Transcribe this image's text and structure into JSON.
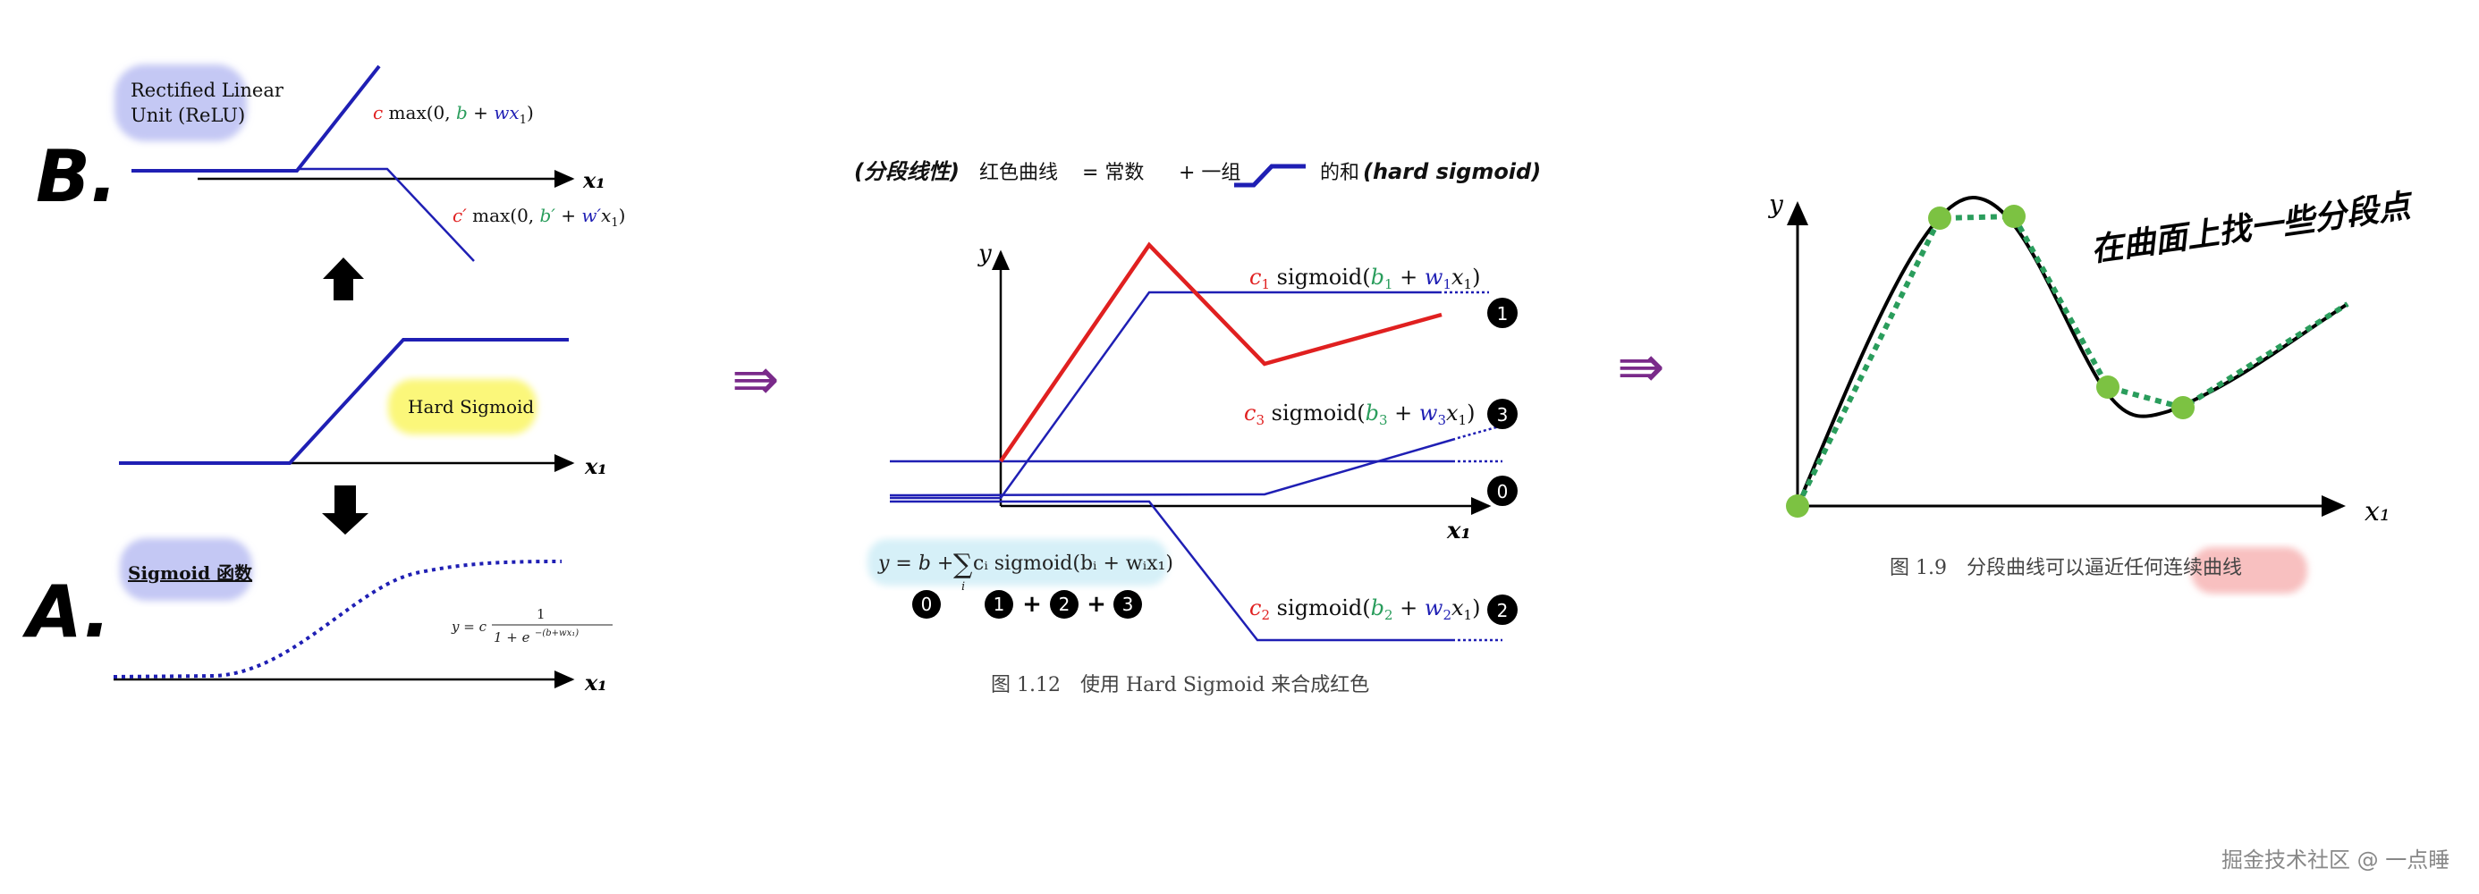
{
  "colors": {
    "blue": "#1f1fb4",
    "red": "#e02020",
    "green": "#2a9d5c",
    "black": "#000000",
    "dot_green": "#7cc242",
    "relu_blob": "#c4c8f4",
    "hard_sigmoid_blob": "#fbf77a",
    "formula_blob": "#d6f0f8",
    "caption_blob": "#f8c0c0",
    "arrow_purple": "#7a2a8a"
  },
  "left": {
    "label_b": "B.",
    "label_a": "A.",
    "relu_title_line1": "Rectified Linear",
    "relu_title_line2": "Unit (ReLU)",
    "relu_formula_1": {
      "c": "c",
      "mid": " max(0, ",
      "b": "b",
      "plus": " + ",
      "w": "wx",
      "sub": "1",
      "end": ")"
    },
    "relu_formula_2": {
      "c": "c′",
      "mid": " max(0, ",
      "b": "b′",
      "plus": " + ",
      "w": "w′",
      "x": "x",
      "sub": "1",
      "end": ")"
    },
    "hard_sigmoid_title": "Hard Sigmoid",
    "sigmoid_title": "Sigmoid 函数",
    "sigmoid_formula": {
      "lhs": "y = c",
      "num": "1",
      "den": "1 + e",
      "exp": "−(b+wx₁)"
    },
    "x_axis_label": "x₁",
    "arrow_up": "up-arrow-icon",
    "arrow_down": "down-arrow-icon"
  },
  "middle": {
    "header": {
      "paren_note": "(分段线性)",
      "red_curve": "红色曲线",
      "equals_const": "= 常数",
      "plus_group": "+  一组",
      "sum_of": "的和",
      "hard_sigmoid_note": "(hard sigmoid)"
    },
    "y_label": "y",
    "x_label": "x₁",
    "sigmoid_labels": [
      {
        "c": "c",
        "i": "1",
        "fn": " sigmoid(",
        "b": "b",
        "plus": " + ",
        "w": "w",
        "x": "x",
        "xs": "1",
        "end": ")",
        "badge": "1"
      },
      {
        "c": "c",
        "i": "3",
        "fn": " sigmoid(",
        "b": "b",
        "plus": " + ",
        "w": "w",
        "x": "x",
        "xs": "1",
        "end": ")",
        "badge": "3"
      },
      {
        "c": "c",
        "i": "2",
        "fn": " sigmoid(",
        "b": "b",
        "plus": " + ",
        "w": "w",
        "x": "x",
        "xs": "1",
        "end": ")",
        "badge": "2"
      }
    ],
    "constant_badge": "0",
    "sum_formula": {
      "lhs": "y = b + ",
      "sigma": "∑",
      "sigma_sub": "i",
      "rest": " cᵢ sigmoid(bᵢ + wᵢx₁)"
    },
    "sum_badges": {
      "b0": "0",
      "b1": "1",
      "plus1": "+",
      "b2": "2",
      "plus2": "+",
      "b3": "3"
    },
    "caption": "图 1.12　使用 Hard Sigmoid 来合成红色"
  },
  "right": {
    "y_label": "y",
    "x_label": "x₁",
    "handwritten_note": "在曲面上找一些分段点",
    "caption": "图 1.9　分段曲线可以逼近任何连续曲线"
  },
  "transition_arrows": [
    "⇛",
    "⇛"
  ],
  "watermark": "掘金技术社区 @ 一点睡"
}
